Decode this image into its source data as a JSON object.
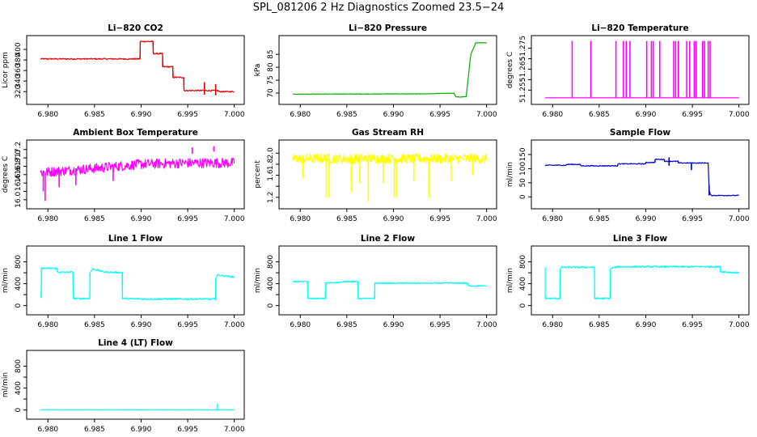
{
  "title": "SPL_081206  2 Hz Diagnostics Zoomed 23.5−24",
  "colors": {
    "red": "#e00000",
    "green": "#00b000",
    "magenta": "#ff00ff",
    "yellow": "#ffff00",
    "blue": "#0000c8",
    "cyan": "#00ffff"
  },
  "chart_data": [
    {
      "type": "line",
      "title": "Li−820 CO2",
      "ylabel": "Licor ppm",
      "color": "red",
      "xlim": [
        6.9785,
        7.0002
      ],
      "ylim": [
        305,
        420
      ],
      "xticks": [
        6.98,
        6.985,
        6.99,
        6.995,
        7.0
      ],
      "xtick_labels": [
        "6.980",
        "6.985",
        "6.990",
        "6.995",
        "7.000"
      ],
      "yticks": [
        320,
        340,
        360,
        380,
        400
      ],
      "ytick_labels": [
        "320",
        "340",
        "360",
        "380",
        "400"
      ],
      "series": [
        {
          "name": "CO2",
          "x": [
            6.9792,
            6.9899,
            6.9899,
            6.9913,
            6.9913,
            6.9923,
            6.9923,
            6.9934,
            6.9934,
            6.9946,
            6.9946,
            6.9972,
            6.9972,
            6.9983,
            6.9983,
            7.0
          ],
          "y": [
            382,
            382,
            415,
            415,
            392,
            392,
            367,
            367,
            347,
            347,
            322,
            322,
            322,
            322,
            320,
            320
          ],
          "noise": 1.2,
          "spikes": [
            {
              "x": 6.9968,
              "y1": 314,
              "y2": 338
            },
            {
              "x": 6.998,
              "y1": 313,
              "y2": 334
            }
          ]
        }
      ]
    },
    {
      "type": "line",
      "title": "Li−820 Pressure",
      "ylabel": "kPa",
      "color": "green",
      "xlim": [
        6.9785,
        7.0002
      ],
      "ylim": [
        67.5,
        91
      ],
      "xticks": [
        6.98,
        6.985,
        6.99,
        6.995,
        7.0
      ],
      "xtick_labels": [
        "6.980",
        "6.985",
        "6.990",
        "6.995",
        "7.000"
      ],
      "yticks": [
        70,
        75,
        80,
        85
      ],
      "ytick_labels": [
        "70",
        "75",
        "80",
        "85"
      ],
      "series": [
        {
          "name": "Pressure",
          "x": [
            6.9792,
            6.994,
            6.995,
            6.995,
            6.9965,
            6.9967,
            6.9972,
            6.9978,
            6.998,
            6.9983,
            6.9988,
            6.9988,
            7.0
          ],
          "y": [
            69.6,
            69.7,
            69.9,
            69.9,
            69.9,
            68.5,
            68.5,
            68.6,
            75,
            85,
            89,
            89.5,
            89.5
          ],
          "noise": 0.08,
          "spikes": []
        }
      ]
    },
    {
      "type": "line",
      "title": "Li−820 Temperature",
      "ylabel": "degrees C",
      "color": "magenta",
      "xlim": [
        6.9785,
        7.0002
      ],
      "ylim": [
        51.2505,
        51.2795
      ],
      "xticks": [
        6.98,
        6.985,
        6.99,
        6.995,
        7.0
      ],
      "xtick_labels": [
        "6.980",
        "6.985",
        "6.990",
        "6.995",
        "7.000"
      ],
      "yticks": [
        51.255,
        51.26,
        51.265,
        51.27,
        51.275
      ],
      "ytick_labels": [
        "51.255",
        "",
        "51.265",
        "",
        "51.275"
      ],
      "series": [
        {
          "name": "Temperature",
          "x": [
            6.9792,
            7.0
          ],
          "y": [
            51.2513,
            51.2513
          ],
          "noise": 0,
          "spikes": [
            {
              "x": 6.9821,
              "y1": 51.2513,
              "y2": 51.2785
            },
            {
              "x": 6.9841,
              "y1": 51.2513,
              "y2": 51.2785
            },
            {
              "x": 6.9868,
              "y1": 51.2513,
              "y2": 51.2785
            },
            {
              "x": 6.9876,
              "y1": 51.2513,
              "y2": 51.2785
            },
            {
              "x": 6.9879,
              "y1": 51.2513,
              "y2": 51.2785
            },
            {
              "x": 6.9883,
              "y1": 51.2513,
              "y2": 51.2785
            },
            {
              "x": 6.9901,
              "y1": 51.2513,
              "y2": 51.2785
            },
            {
              "x": 6.9906,
              "y1": 51.2513,
              "y2": 51.2785
            },
            {
              "x": 6.9908,
              "y1": 51.2513,
              "y2": 51.2785
            },
            {
              "x": 6.9915,
              "y1": 51.2513,
              "y2": 51.2785
            },
            {
              "x": 6.993,
              "y1": 51.2513,
              "y2": 51.2785
            },
            {
              "x": 6.9932,
              "y1": 51.2513,
              "y2": 51.2785
            },
            {
              "x": 6.9935,
              "y1": 51.2513,
              "y2": 51.2785
            },
            {
              "x": 6.9944,
              "y1": 51.2513,
              "y2": 51.2785
            },
            {
              "x": 6.9947,
              "y1": 51.2513,
              "y2": 51.2785
            },
            {
              "x": 6.9952,
              "y1": 51.2513,
              "y2": 51.2785
            },
            {
              "x": 6.9954,
              "y1": 51.2513,
              "y2": 51.2785
            },
            {
              "x": 6.9961,
              "y1": 51.2513,
              "y2": 51.2785
            },
            {
              "x": 6.9963,
              "y1": 51.2513,
              "y2": 51.2785
            },
            {
              "x": 6.9967,
              "y1": 51.2513,
              "y2": 51.2785
            },
            {
              "x": 6.9969,
              "y1": 51.2513,
              "y2": 51.2785
            }
          ]
        }
      ]
    },
    {
      "type": "line",
      "title": "Ambient Box Temperature",
      "ylabel": "degrees C",
      "color": "magenta",
      "xlim": [
        6.9785,
        7.0002
      ],
      "ylim": [
        15.9,
        17.35
      ],
      "xticks": [
        6.98,
        6.985,
        6.99,
        6.995,
        7.0
      ],
      "xtick_labels": [
        "6.980",
        "6.985",
        "6.990",
        "6.995",
        "7.000"
      ],
      "yticks": [
        16.0,
        16.2,
        16.4,
        16.6,
        16.8,
        17.0,
        17.2
      ],
      "ytick_labels": [
        "16.0",
        "",
        "16.4",
        "16.6",
        "16.8",
        "17.0",
        "17.2"
      ],
      "series": [
        {
          "name": "Ambient",
          "x": [
            6.9792,
            6.985,
            6.99,
            6.995,
            7.0
          ],
          "y": [
            16.65,
            16.75,
            16.85,
            16.88,
            16.88
          ],
          "noise": 0.12,
          "spikes": [
            {
              "x": 6.9795,
              "y1": 16.2,
              "y2": 16.7
            },
            {
              "x": 6.9797,
              "y1": 15.97,
              "y2": 16.6
            },
            {
              "x": 6.9812,
              "y1": 16.3,
              "y2": 16.7
            },
            {
              "x": 6.983,
              "y1": 16.35,
              "y2": 16.75
            },
            {
              "x": 6.987,
              "y1": 16.45,
              "y2": 16.8
            },
            {
              "x": 6.9955,
              "y1": 17.1,
              "y2": 17.25
            },
            {
              "x": 6.9978,
              "y1": 17.15,
              "y2": 17.28
            }
          ]
        }
      ]
    },
    {
      "type": "line",
      "title": "Gas Stream RH",
      "ylabel": "percent",
      "color": "yellow",
      "xlim": [
        6.9785,
        7.0002
      ],
      "ylim": [
        1.08,
        2.18
      ],
      "xticks": [
        6.98,
        6.985,
        6.99,
        6.995,
        7.0
      ],
      "xtick_labels": [
        "6.980",
        "6.985",
        "6.990",
        "6.995",
        "7.000"
      ],
      "yticks": [
        1.2,
        1.4,
        1.6,
        1.8,
        2.0
      ],
      "ytick_labels": [
        "1.2",
        "",
        "1.6",
        "1.8",
        "2.0"
      ],
      "series": [
        {
          "name": "RH",
          "x": [
            6.9792,
            7.0
          ],
          "y": [
            1.9,
            1.9
          ],
          "noise": 0.09,
          "spikes": [
            {
              "x": 6.9803,
              "y1": 1.55,
              "y2": 1.9
            },
            {
              "x": 6.9828,
              "y1": 1.2,
              "y2": 1.9
            },
            {
              "x": 6.9831,
              "y1": 1.2,
              "y2": 1.9
            },
            {
              "x": 6.9855,
              "y1": 1.3,
              "y2": 1.9
            },
            {
              "x": 6.9864,
              "y1": 1.45,
              "y2": 1.9
            },
            {
              "x": 6.9873,
              "y1": 1.12,
              "y2": 1.9
            },
            {
              "x": 6.9889,
              "y1": 1.45,
              "y2": 1.9
            },
            {
              "x": 6.9901,
              "y1": 1.2,
              "y2": 1.9
            },
            {
              "x": 6.9903,
              "y1": 1.2,
              "y2": 1.9
            },
            {
              "x": 6.9922,
              "y1": 1.5,
              "y2": 1.9
            },
            {
              "x": 6.9938,
              "y1": 1.2,
              "y2": 1.9
            },
            {
              "x": 6.9962,
              "y1": 1.5,
              "y2": 1.9
            },
            {
              "x": 6.9985,
              "y1": 1.6,
              "y2": 1.9
            }
          ]
        }
      ]
    },
    {
      "type": "line",
      "title": "Sample Flow",
      "ylabel": "ml/min",
      "color": "blue",
      "xlim": [
        6.9785,
        7.0002
      ],
      "ylim": [
        -25,
        190
      ],
      "xticks": [
        6.98,
        6.985,
        6.99,
        6.995,
        7.0
      ],
      "xtick_labels": [
        "6.980",
        "6.985",
        "6.990",
        "6.995",
        "7.000"
      ],
      "yticks": [
        0,
        50,
        100,
        150
      ],
      "ytick_labels": [
        "0",
        "50",
        "100",
        "150"
      ],
      "series": [
        {
          "name": "Sample",
          "x": [
            6.9792,
            6.9815,
            6.9815,
            6.983,
            6.983,
            6.987,
            6.987,
            6.99,
            6.99,
            6.991,
            6.991,
            6.992,
            6.992,
            6.9935,
            6.9935,
            6.9967,
            6.9968,
            6.997,
            7.0
          ],
          "y": [
            112,
            112,
            115,
            115,
            110,
            110,
            117,
            117,
            122,
            122,
            133,
            133,
            126,
            126,
            120,
            120,
            20,
            5,
            5
          ],
          "noise": 1.5,
          "spikes": [
            {
              "x": 6.9925,
              "y1": 110,
              "y2": 140
            },
            {
              "x": 6.9949,
              "y1": 95,
              "y2": 122
            },
            {
              "x": 6.9968,
              "y1": 5,
              "y2": 40
            }
          ]
        }
      ]
    },
    {
      "type": "line",
      "title": "Line 1 Flow",
      "ylabel": "ml/min",
      "color": "cyan",
      "xlim": [
        6.9785,
        7.0002
      ],
      "ylim": [
        -80,
        1030
      ],
      "xticks": [
        6.98,
        6.985,
        6.99,
        6.995,
        7.0
      ],
      "xtick_labels": [
        "6.980",
        "6.985",
        "6.990",
        "6.995",
        "7.000"
      ],
      "yticks": [
        0,
        200,
        400,
        600,
        800
      ],
      "ytick_labels": [
        "0",
        "",
        "400",
        "",
        "800"
      ],
      "series": [
        {
          "name": "Line1",
          "x": [
            6.9792,
            6.9793,
            6.9793,
            6.981,
            6.981,
            6.9827,
            6.9827,
            6.9827,
            6.9845,
            6.9845,
            6.9848,
            6.9848,
            6.9862,
            6.9862,
            6.988,
            6.988,
            6.99,
            6.998,
            6.998,
            6.9982,
            7.0
          ],
          "y": [
            150,
            150,
            680,
            680,
            610,
            610,
            430,
            130,
            130,
            600,
            670,
            670,
            610,
            610,
            605,
            130,
            120,
            120,
            500,
            560,
            520
          ],
          "noise": 15,
          "spikes": []
        }
      ]
    },
    {
      "type": "line",
      "title": "Line 2 Flow",
      "ylabel": "ml/min",
      "color": "cyan",
      "xlim": [
        6.9785,
        7.0002
      ],
      "ylim": [
        -80,
        1030
      ],
      "xticks": [
        6.98,
        6.985,
        6.99,
        6.995,
        7.0
      ],
      "xtick_labels": [
        "6.980",
        "6.985",
        "6.990",
        "6.995",
        "7.000"
      ],
      "yticks": [
        0,
        200,
        400,
        600,
        800
      ],
      "ytick_labels": [
        "0",
        "",
        "400",
        "",
        "800"
      ],
      "series": [
        {
          "name": "Line2",
          "x": [
            6.9792,
            6.9808,
            6.9808,
            6.9827,
            6.9827,
            6.9846,
            6.9846,
            6.9862,
            6.9862,
            6.988,
            6.988,
            6.998,
            6.998,
            7.0
          ],
          "y": [
            440,
            440,
            130,
            130,
            410,
            430,
            440,
            440,
            130,
            130,
            410,
            410,
            360,
            360
          ],
          "noise": 10,
          "spikes": []
        }
      ]
    },
    {
      "type": "line",
      "title": "Line 3 Flow",
      "ylabel": "ml/min",
      "color": "cyan",
      "xlim": [
        6.9785,
        7.0002
      ],
      "ylim": [
        -80,
        1030
      ],
      "xticks": [
        6.98,
        6.985,
        6.99,
        6.995,
        7.0
      ],
      "xtick_labels": [
        "6.980",
        "6.985",
        "6.990",
        "6.995",
        "7.000"
      ],
      "yticks": [
        0,
        200,
        400,
        600,
        800
      ],
      "ytick_labels": [
        "0",
        "",
        "400",
        "",
        "800"
      ],
      "series": [
        {
          "name": "Line3",
          "x": [
            6.9792,
            6.9792,
            6.9793,
            6.9808,
            6.9808,
            6.981,
            6.9845,
            6.9845,
            6.9862,
            6.9862,
            6.987,
            6.993,
            6.998,
            6.998,
            7.0
          ],
          "y": [
            700,
            150,
            130,
            130,
            660,
            700,
            700,
            130,
            130,
            680,
            710,
            710,
            710,
            620,
            600
          ],
          "noise": 15,
          "spikes": []
        }
      ]
    },
    {
      "type": "line",
      "title": "Line 4 (LT) Flow",
      "ylabel": "ml/min",
      "color": "cyan",
      "xlim": [
        6.9785,
        7.0002
      ],
      "ylim": [
        -80,
        1030
      ],
      "xticks": [
        6.98,
        6.985,
        6.99,
        6.995,
        7.0
      ],
      "xtick_labels": [
        "6.980",
        "6.985",
        "6.990",
        "6.995",
        "7.000"
      ],
      "yticks": [
        0,
        200,
        400,
        600,
        800
      ],
      "ytick_labels": [
        "0",
        "",
        "400",
        "",
        "800"
      ],
      "series": [
        {
          "name": "Line4",
          "x": [
            6.9792,
            7.0
          ],
          "y": [
            5,
            5
          ],
          "noise": 2,
          "spikes": [
            {
              "x": 6.9982,
              "y1": 5,
              "y2": 110
            }
          ]
        }
      ]
    }
  ]
}
